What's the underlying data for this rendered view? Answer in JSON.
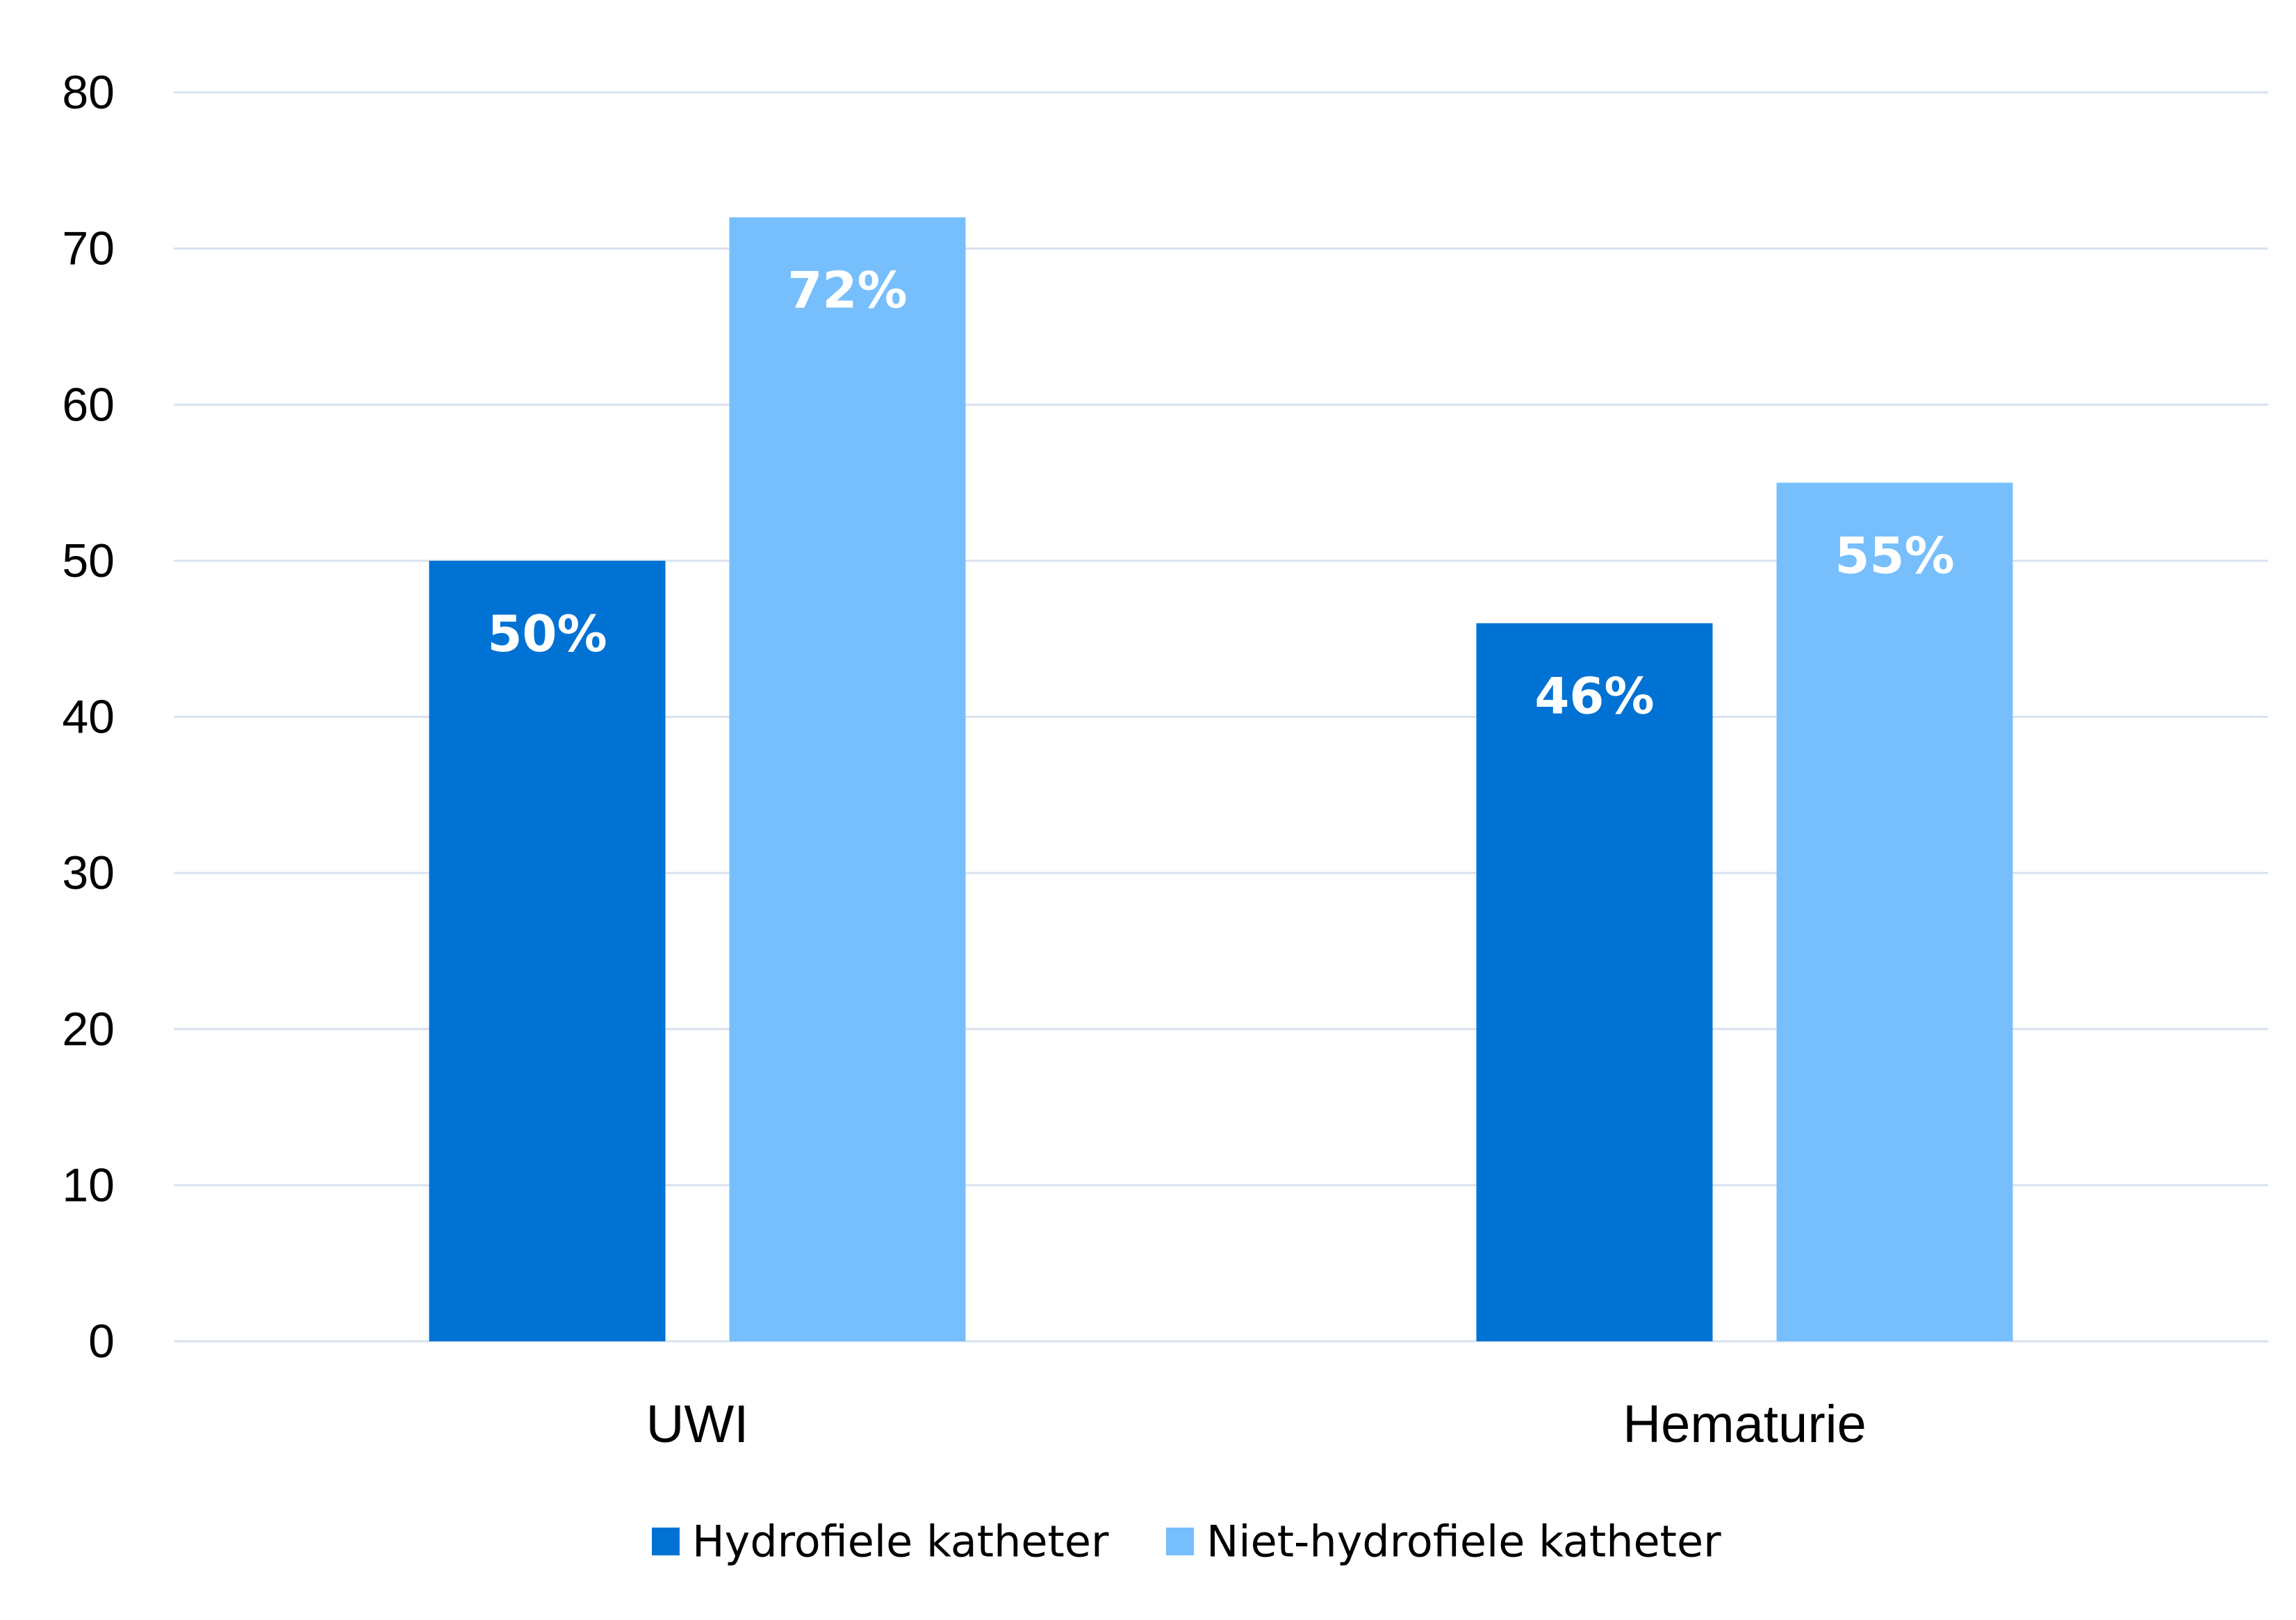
{
  "chart_data": {
    "type": "bar",
    "categories": [
      "UWI",
      "Hematurie"
    ],
    "series": [
      {
        "name": "Hydrofiele katheter",
        "color": "#0072D4",
        "values": [
          50,
          46
        ],
        "labels": [
          "50%",
          "46%"
        ]
      },
      {
        "name": "Niet-hydrofiele katheter",
        "color": "#76BFFC",
        "values": [
          72,
          55
        ],
        "labels": [
          "72%",
          "55%"
        ]
      }
    ],
    "yticks": [
      "0",
      "10",
      "20",
      "30",
      "40",
      "50",
      "60",
      "70",
      "80"
    ],
    "ylim": [
      0,
      80
    ],
    "grid": true,
    "legend": "bottom",
    "gridColor": "#D9E2F0"
  }
}
